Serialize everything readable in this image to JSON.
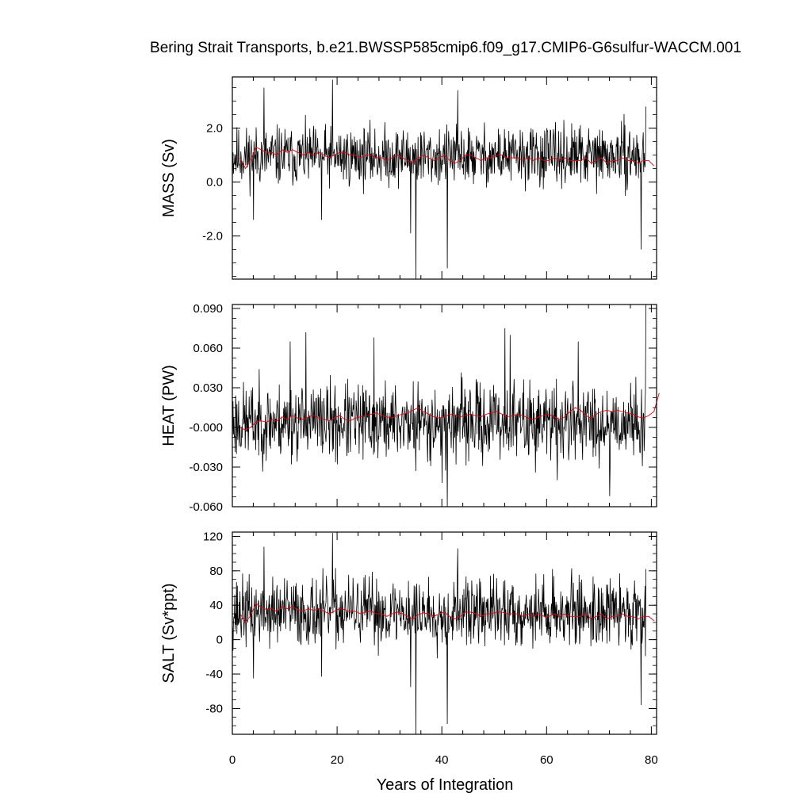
{
  "chart_data": {
    "type": "line",
    "title": "Bering Strait Transports, b.e21.BWSSP585cmip6.f09_g17.CMIP6-G6sulfur-WACCM.001",
    "xlabel": "Years of Integration",
    "xlim": [
      0,
      81
    ],
    "xticks": [
      0,
      20,
      40,
      60,
      80
    ],
    "xtick_labels": [
      "0",
      "20",
      "40",
      "60",
      "80"
    ],
    "grid": false,
    "legend": "none",
    "series_colors": {
      "monthly": "#000000",
      "annual_mean": "#e8000b"
    },
    "panels": [
      {
        "ylabel": "MASS (Sv)",
        "ylim": [
          -3.6,
          3.9
        ],
        "yticks": [
          2.0,
          0.0,
          -2.0
        ],
        "ytick_labels": [
          "2.0",
          "0.0",
          "-2.0"
        ],
        "monthly": {
          "mean": 0.95,
          "amp": 0.6,
          "seed": 11,
          "spikes": [
            [
              6.0,
              3.5
            ],
            [
              19.1,
              3.8
            ],
            [
              43.0,
              3.4
            ],
            [
              35.0,
              -3.6
            ],
            [
              41.0,
              -3.2
            ],
            [
              34.0,
              -1.9
            ],
            [
              78.0,
              -2.5
            ],
            [
              4.0,
              -1.4
            ],
            [
              17.0,
              -1.4
            ],
            [
              81.0,
              2.8
            ]
          ]
        },
        "annual_mean": [
          0.9,
          0.5,
          0.8,
          1.3,
          1.2,
          1.1,
          1.1,
          1.0,
          1.2,
          1.1,
          1.2,
          1.1,
          1.0,
          1.1,
          1.0,
          1.1,
          1.0,
          0.9,
          1.0,
          1.1,
          1.1,
          1.0,
          1.0,
          0.9,
          1.0,
          1.0,
          0.9,
          0.9,
          0.8,
          0.9,
          1.0,
          0.9,
          0.8,
          0.7,
          0.9,
          1.0,
          0.9,
          0.8,
          0.9,
          1.0,
          0.8,
          0.7,
          0.8,
          1.0,
          1.0,
          0.9,
          0.8,
          0.9,
          0.9,
          1.0,
          1.0,
          0.9,
          0.9,
          0.9,
          0.8,
          0.9,
          0.8,
          0.9,
          0.8,
          0.8,
          0.9,
          0.8,
          0.9,
          0.8,
          0.8,
          0.8,
          0.9,
          0.7,
          0.8,
          0.9,
          0.7,
          0.8,
          0.8,
          0.9,
          0.8,
          0.8,
          0.7,
          0.8,
          0.8,
          0.6
        ]
      },
      {
        "ylabel": "HEAT (PW)",
        "ylim": [
          -0.06,
          0.093
        ],
        "yticks": [
          0.09,
          0.06,
          0.03,
          0.0,
          -0.03,
          -0.06
        ],
        "ytick_labels": [
          "0.090",
          "0.060",
          "0.030",
          "-0.000",
          "-0.030",
          "-0.060"
        ],
        "monthly": {
          "mean": 0.004,
          "amp": 0.016,
          "seed": 23,
          "spikes": [
            [
              14.0,
              0.072
            ],
            [
              11.0,
              0.065
            ],
            [
              27.0,
              0.068
            ],
            [
              35.0,
              0.07
            ],
            [
              52.0,
              0.075
            ],
            [
              53.0,
              0.07
            ],
            [
              66.0,
              0.065
            ],
            [
              72.0,
              0.082
            ],
            [
              81.0,
              0.093
            ],
            [
              40.0,
              -0.042
            ],
            [
              41.0,
              -0.06
            ],
            [
              35.0,
              -0.033
            ],
            [
              62.0,
              -0.04
            ],
            [
              72.0,
              -0.052
            ],
            [
              20.0,
              -0.028
            ]
          ]
        },
        "annual_mean": [
          0.0,
          -0.002,
          0.0,
          0.004,
          0.005,
          0.004,
          0.006,
          0.005,
          0.008,
          0.006,
          0.009,
          0.007,
          0.006,
          0.008,
          0.009,
          0.007,
          0.006,
          0.005,
          0.007,
          0.009,
          0.006,
          0.005,
          0.007,
          0.008,
          0.009,
          0.01,
          0.011,
          0.009,
          0.008,
          0.007,
          0.009,
          0.01,
          0.011,
          0.013,
          0.015,
          0.012,
          0.01,
          0.008,
          0.007,
          0.008,
          0.01,
          0.009,
          0.008,
          0.009,
          0.01,
          0.009,
          0.008,
          0.01,
          0.011,
          0.012,
          0.01,
          0.008,
          0.009,
          0.01,
          0.009,
          0.007,
          0.006,
          0.008,
          0.009,
          0.01,
          0.008,
          0.006,
          0.008,
          0.012,
          0.015,
          0.013,
          0.009,
          0.007,
          0.01,
          0.012,
          0.013,
          0.012,
          0.013,
          0.012,
          0.011,
          0.01,
          0.008,
          0.007,
          0.009,
          0.012,
          0.026
        ]
      },
      {
        "ylabel": "SALT (Sv*ppt)",
        "ylim": [
          -110,
          125
        ],
        "yticks": [
          120,
          80,
          40,
          0,
          -40,
          -80
        ],
        "ytick_labels": [
          "120",
          "80",
          "40",
          "0",
          "-40",
          "-80"
        ],
        "monthly": {
          "mean": 32,
          "amp": 22,
          "seed": 37,
          "spikes": [
            [
              6.0,
              108
            ],
            [
              19.1,
              124
            ],
            [
              43.0,
              106
            ],
            [
              35.0,
              -110
            ],
            [
              41.0,
              -98
            ],
            [
              34.0,
              -55
            ],
            [
              78.0,
              -76
            ],
            [
              4.0,
              -45
            ],
            [
              17.0,
              -43
            ],
            [
              81.0,
              82
            ]
          ]
        },
        "annual_mean": [
          30,
          20,
          28,
          42,
          38,
          35,
          36,
          33,
          38,
          36,
          38,
          35,
          33,
          36,
          34,
          36,
          33,
          30,
          33,
          36,
          35,
          32,
          33,
          30,
          32,
          33,
          30,
          30,
          27,
          30,
          32,
          30,
          27,
          24,
          29,
          31,
          30,
          27,
          30,
          32,
          27,
          24,
          27,
          32,
          32,
          30,
          27,
          30,
          30,
          32,
          32,
          30,
          30,
          30,
          27,
          30,
          27,
          30,
          27,
          27,
          30,
          27,
          30,
          27,
          27,
          27,
          30,
          24,
          27,
          30,
          24,
          27,
          27,
          30,
          27,
          27,
          24,
          27,
          27,
          22
        ]
      }
    ]
  }
}
